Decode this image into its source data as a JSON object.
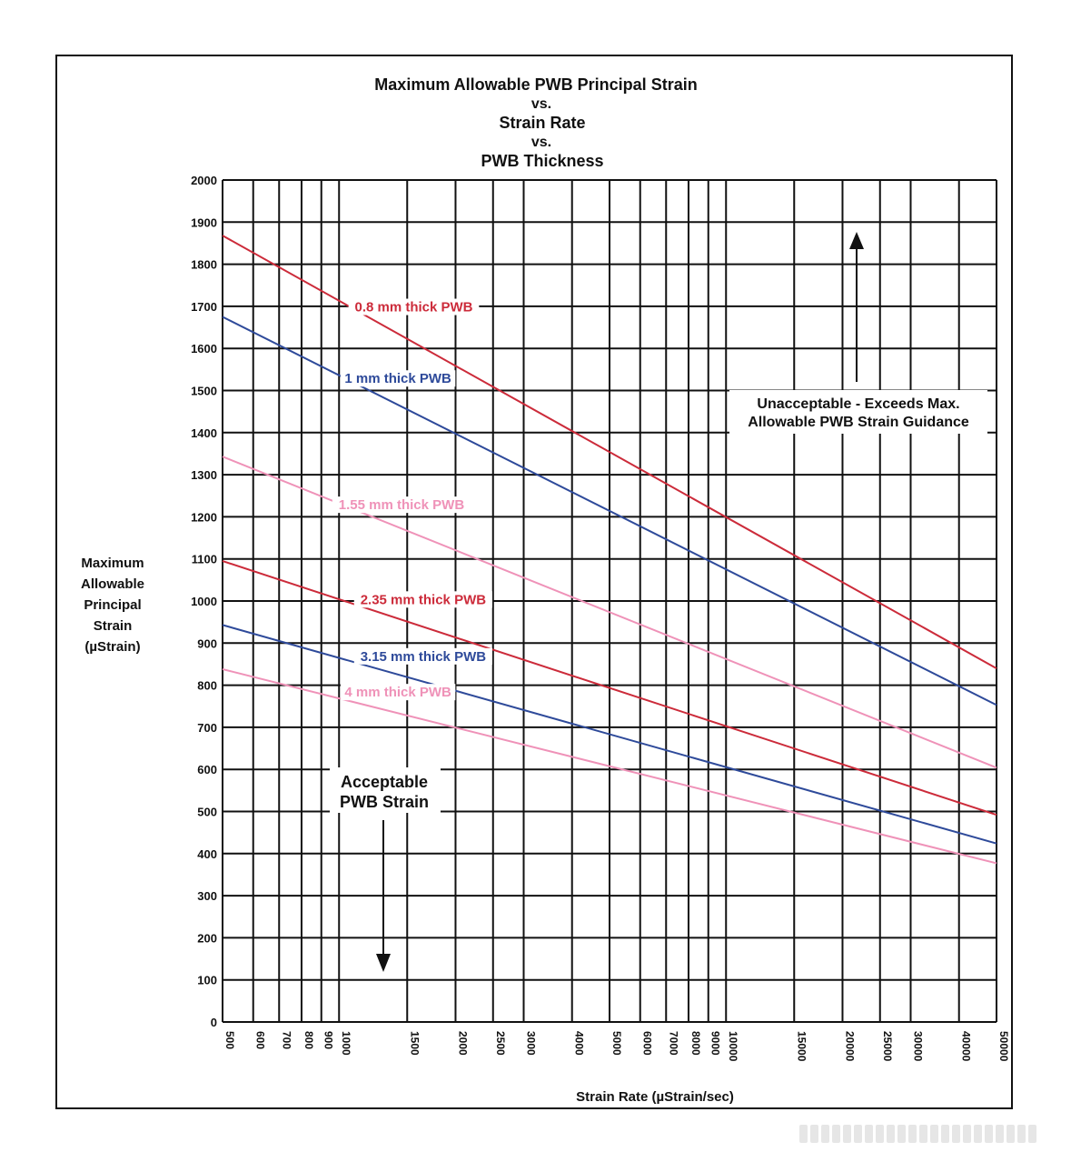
{
  "chart_data": {
    "type": "line",
    "title_lines": [
      "Maximum Allowable PWB Principal Strain",
      "vs.",
      "Strain Rate",
      "vs.",
      "PWB Thickness"
    ],
    "xlabel": "Strain Rate (µStrain/sec)",
    "ylabel_lines": [
      "Maximum",
      "Allowable",
      "Principal",
      "Strain",
      "(µStrain)"
    ],
    "x_scale": "log",
    "xlim": [
      500,
      50000
    ],
    "ylim": [
      0,
      2000
    ],
    "x_ticks": [
      500,
      600,
      700,
      800,
      900,
      1000,
      1500,
      2000,
      2500,
      3000,
      4000,
      5000,
      6000,
      7000,
      8000,
      9000,
      10000,
      15000,
      20000,
      25000,
      30000,
      40000,
      50000
    ],
    "x_tick_labels": [
      "500",
      "600",
      "700",
      "800",
      "900",
      "1000",
      "1500",
      "2000",
      "2500",
      "3000",
      "4000",
      "5000",
      "6000",
      "7000",
      "8000",
      "9000",
      "10000",
      "15000",
      "20000",
      "25000",
      "30000",
      "40000",
      "50000"
    ],
    "y_ticks": [
      0,
      100,
      200,
      300,
      400,
      500,
      600,
      700,
      800,
      900,
      1000,
      1100,
      1200,
      1300,
      1400,
      1500,
      1600,
      1700,
      1800,
      1900,
      2000
    ],
    "y_tick_labels": [
      "0",
      "100",
      "200",
      "300",
      "400",
      "500",
      "600",
      "700",
      "800",
      "900",
      "1000",
      "1100",
      "1200",
      "1300",
      "1400",
      "1500",
      "1600",
      "1700",
      "1800",
      "1900",
      "2000"
    ],
    "grid": true,
    "series": [
      {
        "name": "0.8 mm thick PWB",
        "color": "#cc2b3a",
        "x": [
          500,
          50000
        ],
        "y": [
          1868,
          840
        ]
      },
      {
        "name": "1 mm thick PWB",
        "color": "#2e4a9a",
        "x": [
          500,
          50000
        ],
        "y": [
          1675,
          753
        ]
      },
      {
        "name": "1.55 mm thick PWB",
        "color": "#ef92b8",
        "x": [
          500,
          50000
        ],
        "y": [
          1343,
          604
        ]
      },
      {
        "name": "2.35 mm thick PWB",
        "color": "#cc2b3a",
        "x": [
          500,
          50000
        ],
        "y": [
          1095,
          492
        ]
      },
      {
        "name": "3.15 mm thick PWB",
        "color": "#2e4a9a",
        "x": [
          500,
          50000
        ],
        "y": [
          943,
          424
        ]
      },
      {
        "name": "4 mm thick PWB",
        "color": "#ef92b8",
        "x": [
          500,
          50000
        ],
        "y": [
          838,
          377
        ]
      }
    ],
    "series_label_positions": [
      {
        "x": 1560,
        "y": 1690
      },
      {
        "x": 1420,
        "y": 1520
      },
      {
        "x": 1450,
        "y": 1220
      },
      {
        "x": 1650,
        "y": 995
      },
      {
        "x": 1650,
        "y": 860
      },
      {
        "x": 1420,
        "y": 775
      }
    ],
    "annotations": [
      {
        "id": "unacceptable",
        "lines": [
          "Unacceptable - Exceeds Max.",
          "Allowable PWB Strain Guidance"
        ]
      },
      {
        "id": "acceptable",
        "lines": [
          "Acceptable",
          "PWB Strain"
        ]
      }
    ]
  }
}
